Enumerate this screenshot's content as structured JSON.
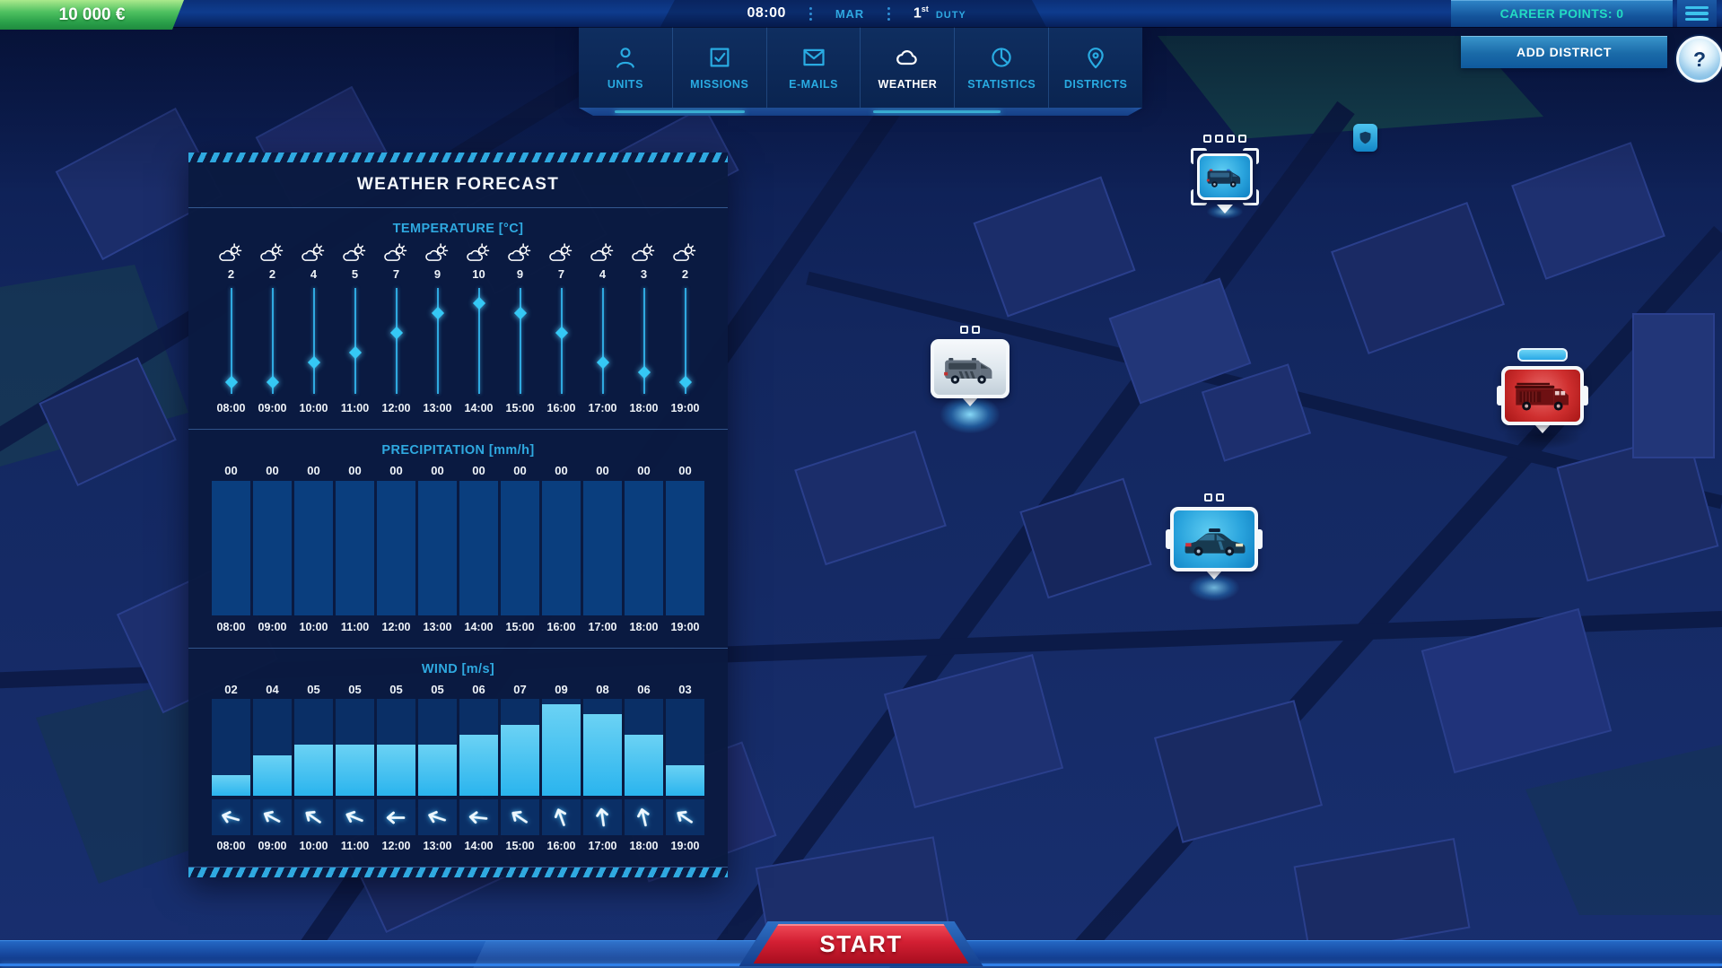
{
  "topbar": {
    "money": "10 000 €",
    "time": "08:00",
    "month": "MAR",
    "day_number": "1",
    "day_ordinal": "st",
    "duty_label": "DUTY",
    "career_points_label": "CAREER POINTS: 0"
  },
  "nav": {
    "tabs": [
      {
        "id": "units",
        "label": "UNITS",
        "icon": "person-icon",
        "active": false
      },
      {
        "id": "missions",
        "label": "MISSIONS",
        "icon": "checkbox-icon",
        "active": false
      },
      {
        "id": "emails",
        "label": "E-MAILS",
        "icon": "envelope-icon",
        "active": false
      },
      {
        "id": "weather",
        "label": "WEATHER",
        "icon": "cloud-icon",
        "active": true
      },
      {
        "id": "statistics",
        "label": "STATISTICS",
        "icon": "pie-chart-icon",
        "active": false
      },
      {
        "id": "districts",
        "label": "DISTRICTS",
        "icon": "map-pin-icon",
        "active": false
      }
    ]
  },
  "actions": {
    "add_district_label": "ADD DISTRICT",
    "help_label": "?",
    "start_label": "START"
  },
  "weather_panel": {
    "title": "WEATHER FORECAST",
    "hours": [
      "08:00",
      "09:00",
      "10:00",
      "11:00",
      "12:00",
      "13:00",
      "14:00",
      "15:00",
      "16:00",
      "17:00",
      "18:00",
      "19:00"
    ],
    "temperature": {
      "heading": "TEMPERATURE [°C]",
      "icon": "sun-behind-cloud",
      "values": [
        2,
        2,
        4,
        5,
        7,
        9,
        10,
        9,
        7,
        4,
        3,
        2
      ]
    },
    "precipitation": {
      "heading": "PRECIPITATION [mm/h]",
      "values": [
        "00",
        "00",
        "00",
        "00",
        "00",
        "00",
        "00",
        "00",
        "00",
        "00",
        "00",
        "00"
      ]
    },
    "wind": {
      "heading": "WIND [m/s]",
      "values": [
        "02",
        "04",
        "05",
        "05",
        "05",
        "05",
        "06",
        "07",
        "09",
        "08",
        "06",
        "03"
      ],
      "numeric": [
        2,
        4,
        5,
        5,
        5,
        5,
        6,
        7,
        9,
        8,
        6,
        3
      ],
      "directions_deg": [
        196,
        208,
        215,
        202,
        180,
        198,
        186,
        214,
        250,
        262,
        257,
        214
      ]
    }
  },
  "map": {
    "markers": [
      {
        "id": "police-van",
        "vehicle": "police-van",
        "slots": 4
      },
      {
        "id": "ambulance",
        "vehicle": "ambulance",
        "slots": 2
      },
      {
        "id": "fire-truck",
        "vehicle": "fire-truck",
        "slots": 0,
        "has_progress_pill": true
      },
      {
        "id": "police-car",
        "vehicle": "police-car",
        "slots": 2
      }
    ],
    "poi": [
      {
        "id": "police-station",
        "icon": "shield-icon"
      }
    ]
  },
  "colors": {
    "accent_cyan": "#29abe2",
    "career_teal": "#23dcc3",
    "money_green": "#3cb254",
    "alert_red": "#d31f33",
    "panel_navy": "#0a1a40"
  }
}
